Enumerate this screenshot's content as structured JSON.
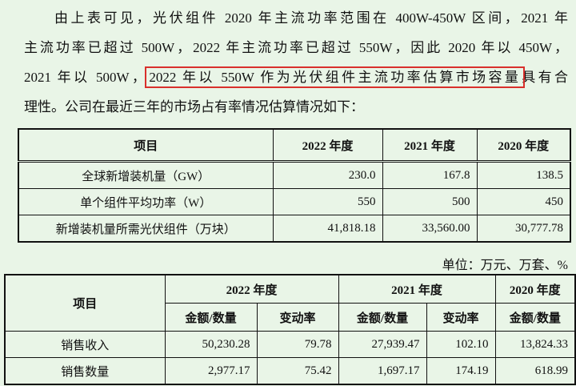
{
  "paragraph": {
    "line1": "由上表可见，光伏组件 2020 年主流功率范围在 400W-450W 区间，2021 年",
    "line2": "主流功率已超过 500W，2022 年主流功率已超过 550W，因此 2020 年以 450W，",
    "line3_start": "2021 年以 500W，",
    "highlight": "2022 年以 550W 作为光伏组件主流功率估算市场容量",
    "line3_end": "具有合",
    "line4": "理性。公司在最近三年的市场占有率情况估算情况如下："
  },
  "table1": {
    "header": [
      "项目",
      "2022 年度",
      "2021 年度",
      "2020 年度"
    ],
    "rows": [
      [
        "全球新增装机量（GW）",
        "230.0",
        "167.8",
        "138.5"
      ],
      [
        "单个组件平均功率（W）",
        "550",
        "500",
        "450"
      ],
      [
        "新增装机量所需光伏组件（万块）",
        "41,818.18",
        "33,560.00",
        "30,777.78"
      ]
    ]
  },
  "unit": "单位：万元、万套、%",
  "table2": {
    "header": [
      "项目",
      "2022 年度",
      "2021 年度",
      "2020 年度"
    ],
    "subheader": [
      "金额/数量",
      "变动率",
      "金额/数量",
      "变动率",
      "金额/数量"
    ],
    "rows": [
      [
        "销售收入",
        "50,230.28",
        "79.78",
        "27,939.47",
        "102.10",
        "13,824.33"
      ],
      [
        "销售数量",
        "2,977.17",
        "75.42",
        "1,697.17",
        "174.19",
        "618.99"
      ]
    ]
  }
}
